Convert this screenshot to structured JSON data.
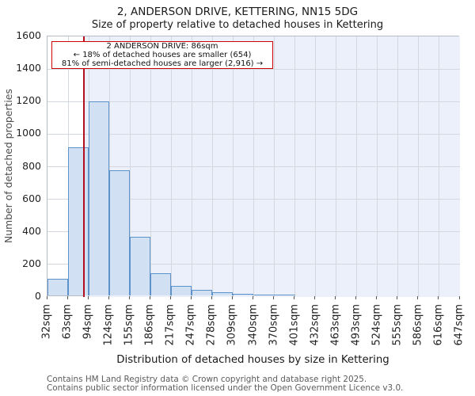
{
  "title": "2, ANDERSON DRIVE, KETTERING, NN15 5DG",
  "subtitle": "Size of property relative to detached houses in Kettering",
  "chart_data": {
    "type": "bar",
    "title": "2, ANDERSON DRIVE, KETTERING, NN15 5DG",
    "subtitle": "Size of property relative to detached houses in Kettering",
    "xlabel": "Distribution of detached houses by size in Kettering",
    "ylabel": "Number of detached properties",
    "ylim": [
      0,
      1600
    ],
    "ytick_step": 200,
    "grid": true,
    "bin_edges_sqm": [
      32,
      63,
      94,
      124,
      155,
      186,
      217,
      247,
      278,
      309,
      340,
      370,
      401,
      432,
      463,
      493,
      524,
      555,
      586,
      616,
      647
    ],
    "tick_labels": [
      "32sqm",
      "63sqm",
      "94sqm",
      "124sqm",
      "155sqm",
      "186sqm",
      "217sqm",
      "247sqm",
      "278sqm",
      "309sqm",
      "340sqm",
      "370sqm",
      "401sqm",
      "432sqm",
      "463sqm",
      "493sqm",
      "524sqm",
      "555sqm",
      "586sqm",
      "616sqm",
      "647sqm"
    ],
    "values": [
      100,
      910,
      1190,
      770,
      360,
      135,
      60,
      33,
      18,
      8,
      5,
      3,
      0,
      0,
      0,
      0,
      0,
      0,
      0,
      0
    ],
    "marker_sqm": 86,
    "colors": {
      "bar_fill": "#d2e0f3",
      "bar_edge": "#5e92ca",
      "marker_line": "#b30f1f",
      "span_fill": "#ebf0fa",
      "grid": "#d3d7de",
      "annotation_border": "#cc0000"
    }
  },
  "annotation": {
    "line1": "2 ANDERSON DRIVE: 86sqm",
    "line2": "← 18% of detached houses are smaller (654)",
    "line3": "81% of semi-detached houses are larger (2,916) →"
  },
  "footer": {
    "line1": "Contains HM Land Registry data © Crown copyright and database right 2025.",
    "line2": "Contains public sector information licensed under the Open Government Licence v3.0."
  }
}
